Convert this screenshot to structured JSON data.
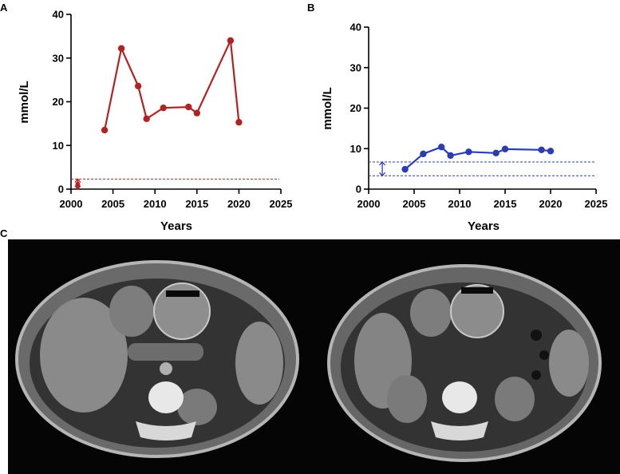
{
  "panels": {
    "a": "A",
    "b": "B",
    "c": "C"
  },
  "colors": {
    "red": "#b22222",
    "blue": "#2a3eb1",
    "ct_background": "#050505"
  },
  "chart_data": [
    {
      "id": "A",
      "type": "line",
      "xlabel": "Years",
      "ylabel": "mmol/L",
      "xlim": [
        2000,
        2025
      ],
      "ylim": [
        0,
        40
      ],
      "xticks": [
        2000,
        2005,
        2010,
        2015,
        2020,
        2025
      ],
      "yticks": [
        0,
        10,
        20,
        30,
        40
      ],
      "grid": false,
      "series": [
        {
          "color": "#b22222",
          "x": [
            2004,
            2006,
            2008,
            2009,
            2011,
            2014,
            2015,
            2019,
            2020
          ],
          "y": [
            13.5,
            32.2,
            23.6,
            16.1,
            18.6,
            18.8,
            17.4,
            34,
            15.3
          ]
        }
      ],
      "reference_line": {
        "y": 2.3,
        "color": "#b22222",
        "style": "dashed"
      },
      "reference_marker": {
        "x": 2000.8,
        "y": 1.0,
        "range": [
          0,
          2.3
        ]
      }
    },
    {
      "id": "B",
      "type": "line",
      "xlabel": "Years",
      "ylabel": "mmol/L",
      "xlim": [
        2000,
        2025
      ],
      "ylim": [
        0,
        40
      ],
      "xticks": [
        2000,
        2005,
        2010,
        2015,
        2020,
        2025
      ],
      "yticks": [
        0,
        10,
        20,
        30,
        40
      ],
      "grid": false,
      "series": [
        {
          "color": "#2a3eb1",
          "x": [
            2004,
            2006,
            2008,
            2009,
            2011,
            2014,
            2015,
            2019,
            2020
          ],
          "y": [
            4.9,
            8.7,
            10.4,
            8.3,
            9.2,
            8.9,
            9.9,
            9.7,
            9.4
          ]
        }
      ],
      "reference_band": {
        "low": 3.3,
        "high": 6.7,
        "color": "#2a3eb1",
        "style": "dashed"
      },
      "reference_marker": {
        "x": 2001.5,
        "range": [
          3.3,
          6.7
        ]
      }
    }
  ],
  "ct_images": [
    {
      "name": "ct-scan-left"
    },
    {
      "name": "ct-scan-right"
    }
  ]
}
